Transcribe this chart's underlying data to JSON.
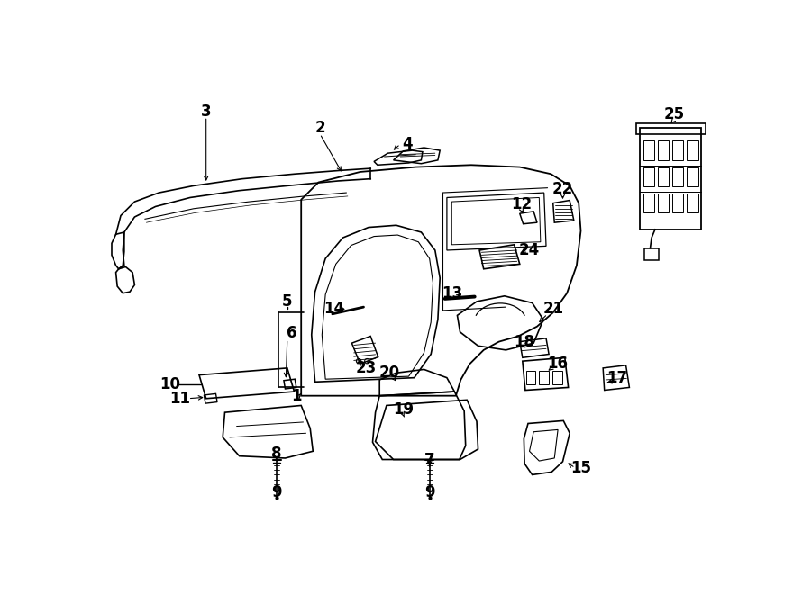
{
  "bg_color": "#ffffff",
  "lw": 1.0,
  "fs": 12
}
